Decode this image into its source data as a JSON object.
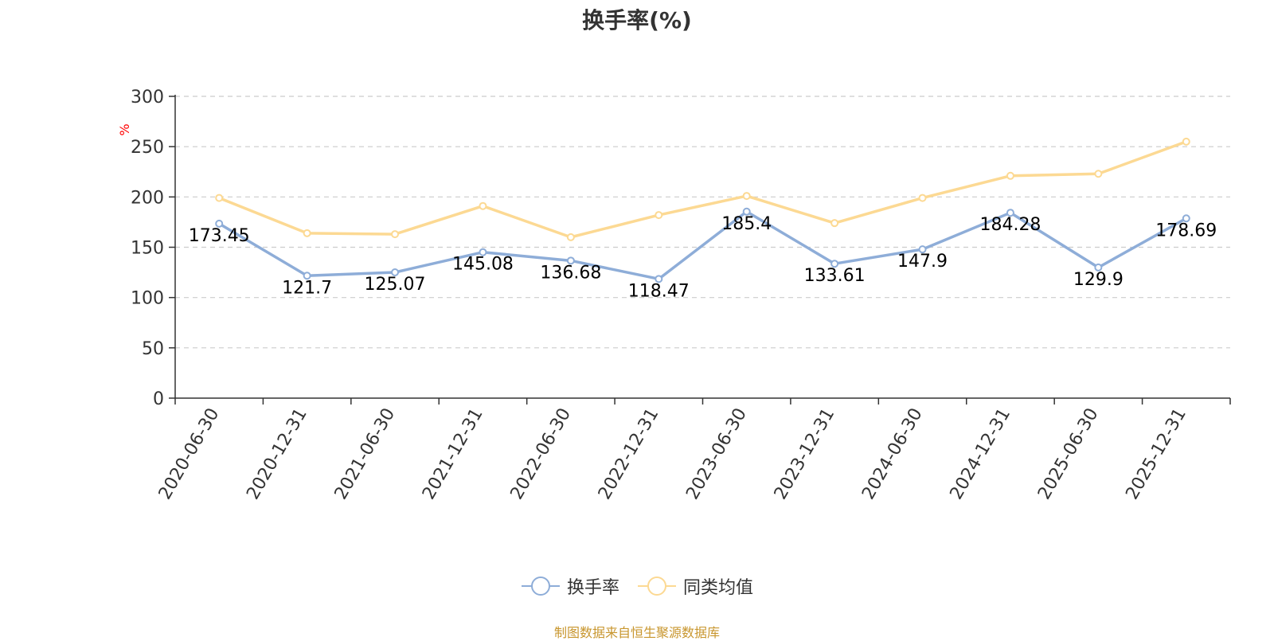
{
  "chart_data": {
    "type": "line",
    "title": "换手率(%)",
    "ylabel": "%",
    "xlabel": "",
    "ylim": [
      0,
      300
    ],
    "yticks": [
      0,
      50,
      100,
      150,
      200,
      250,
      300
    ],
    "grid": true,
    "legend_position": "bottom",
    "categories": [
      "2020-06-30",
      "2020-12-31",
      "2021-06-30",
      "2021-12-31",
      "2022-06-30",
      "2022-12-31",
      "2023-06-30",
      "2023-12-31",
      "2024-06-30",
      "2024-12-31",
      "2025-06-30",
      "2025-12-31"
    ],
    "series": [
      {
        "name": "换手率",
        "color": "#8eadd8",
        "values": [
          173.45,
          121.7,
          125.07,
          145.08,
          136.68,
          118.47,
          185.4,
          133.61,
          147.9,
          184.28,
          129.9,
          178.69
        ],
        "data_labels": [
          "173.45",
          "121.7",
          "125.07",
          "145.08",
          "136.68",
          "118.47",
          "185.4",
          "133.61",
          "147.9",
          "184.28",
          "129.9",
          "178.69"
        ]
      },
      {
        "name": "同类均值",
        "color": "#fcd993",
        "values": [
          199,
          164,
          163,
          191,
          160,
          182,
          201,
          174,
          199,
          221,
          223,
          255
        ]
      }
    ]
  },
  "source_note": "制图数据来自恒生聚源数据库",
  "colors": {
    "title": "#333333",
    "axis": "#333333",
    "grid": "#cccccc",
    "ylabel": "#ff0000",
    "source_note": "#c8962e"
  }
}
